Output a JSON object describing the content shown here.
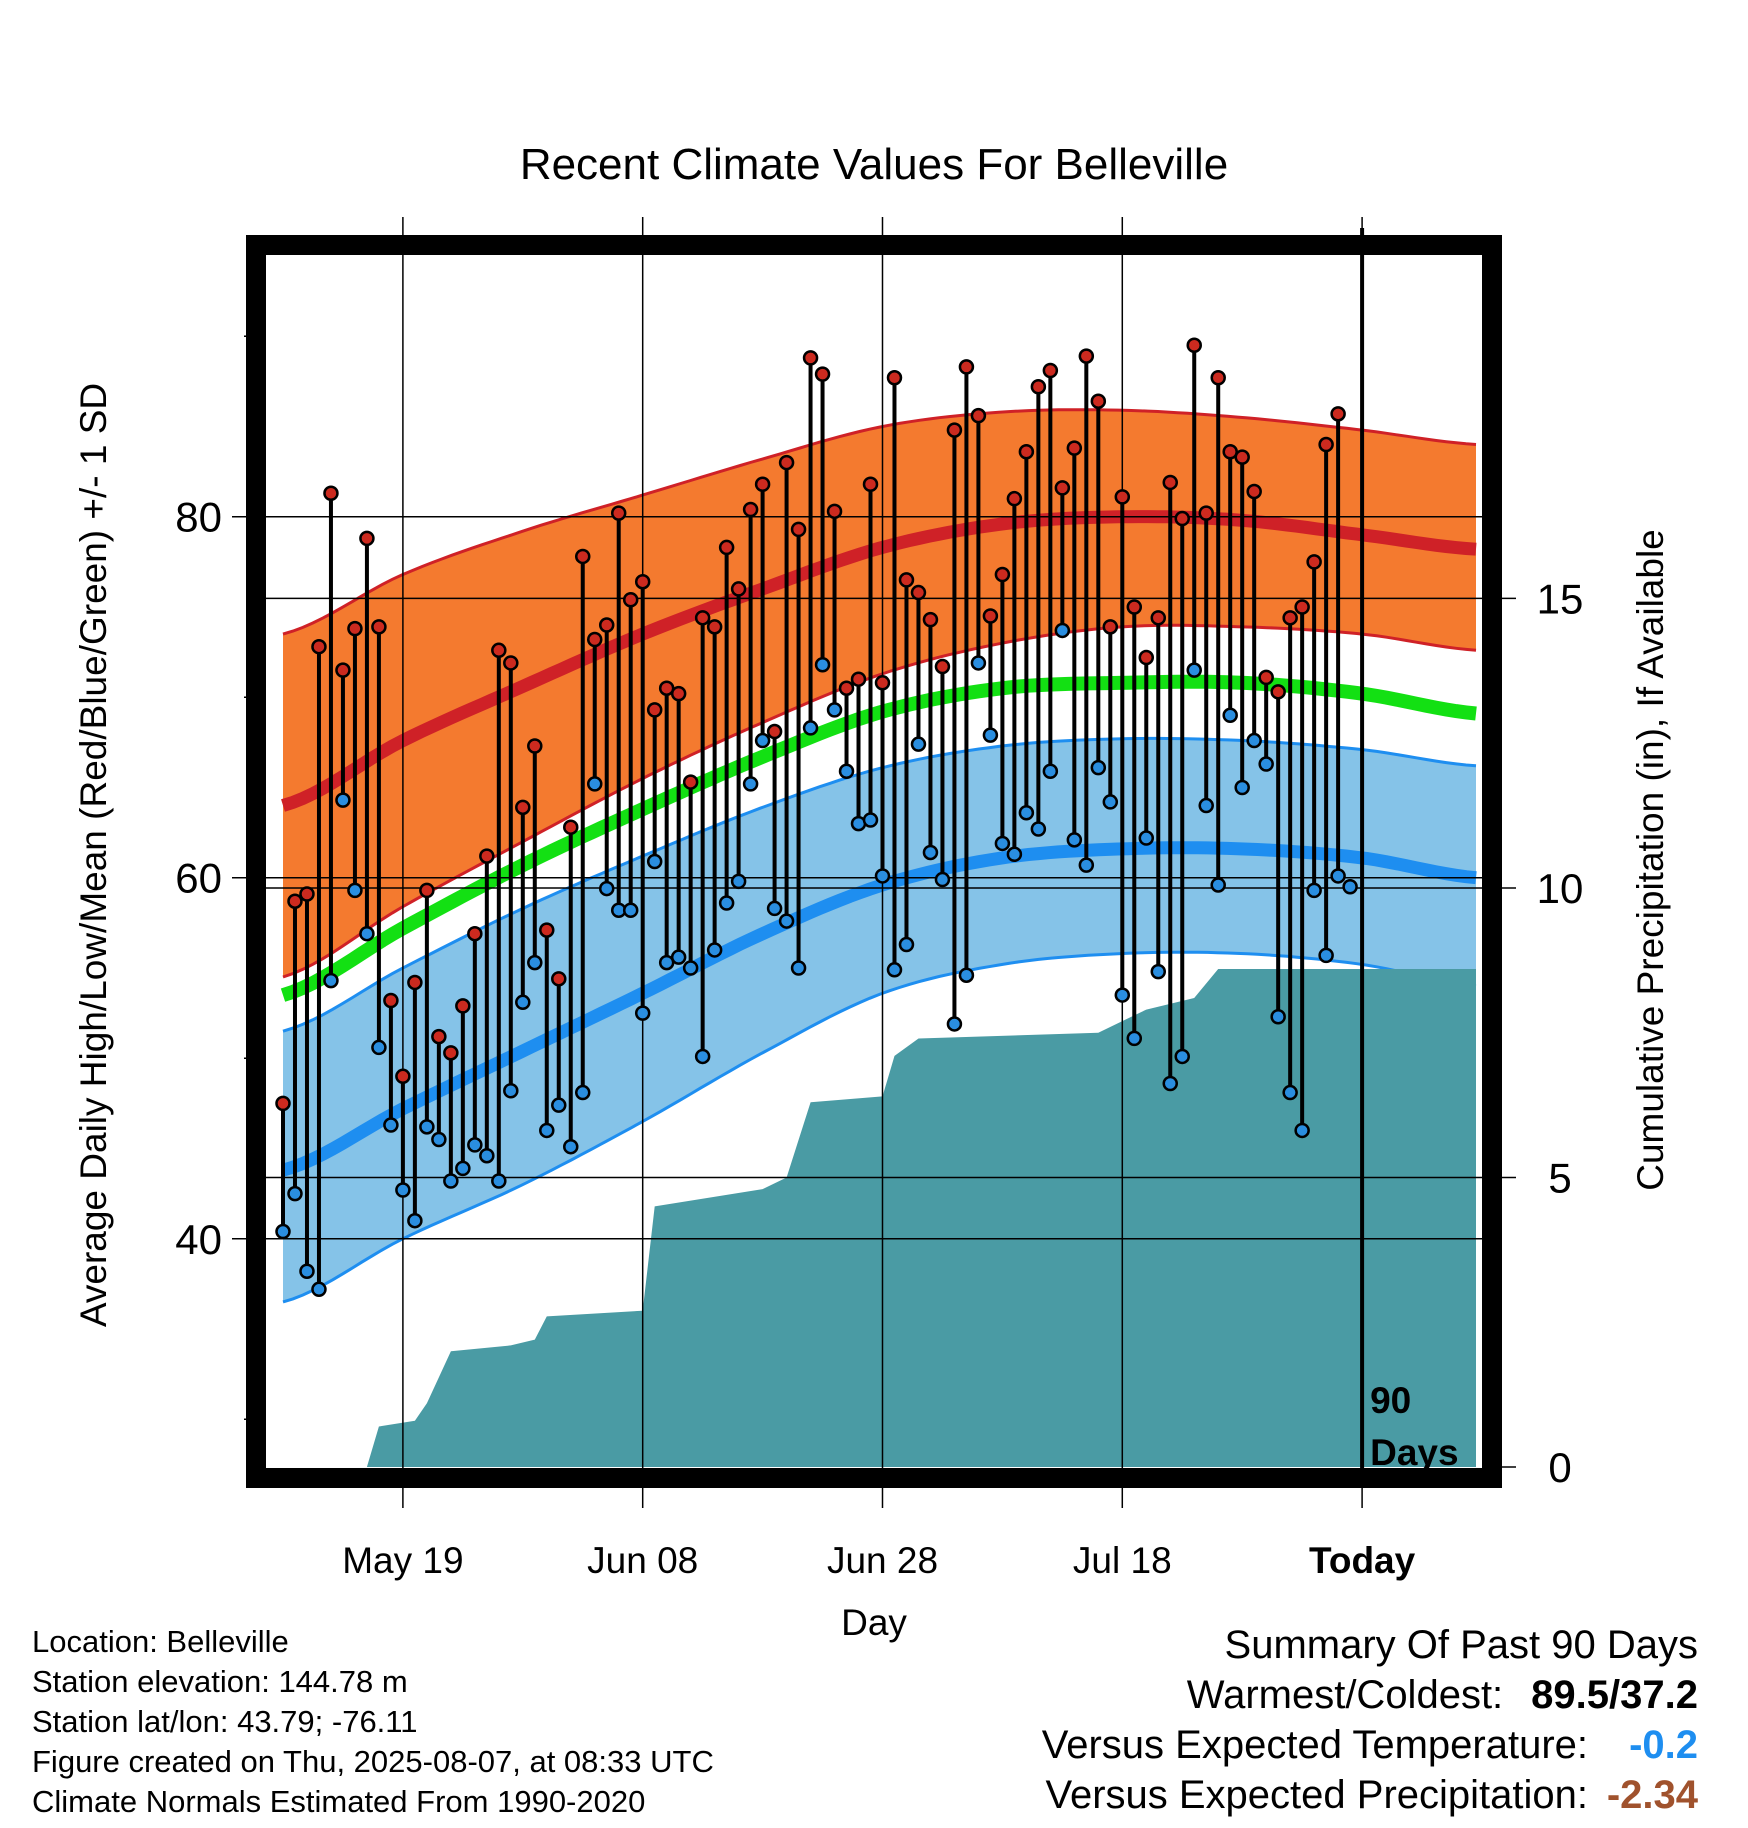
{
  "chart_data": {
    "type": "line",
    "title": "Recent Climate Values For Belleville",
    "xlabel": "Day",
    "ylabel": "Average Daily High/Low/Mean (Red/Blue/Green) +/- 1 SD",
    "y2label": "Cumulative Precipitation (in), If Available",
    "ylim": [
      27.3,
      94.5
    ],
    "y2lim": [
      0,
      21
    ],
    "yticks": [
      "40",
      "60",
      "80"
    ],
    "y2ticks": [
      "0",
      "5",
      "10",
      "15"
    ],
    "xticks": [
      "May 19",
      "Jun 08",
      "Jun 28",
      "Jul 18",
      "Today"
    ],
    "xtick_days": [
      10,
      30,
      50,
      70,
      90
    ],
    "xlim": [
      -0.5,
      99.5
    ],
    "grid": true,
    "marker_label": "90\nDays",
    "marker_day": 90,
    "colors": {
      "high_band": "#f47a2f",
      "high_line": "#cf2127",
      "low_band": "#85c3e8",
      "low_line": "#1e8ef0",
      "mean_line": "#13e013",
      "precip": "#4a9ba4",
      "high_dot": "#cc2a1f",
      "low_dot": "#2a8ee0"
    },
    "normals": {
      "x": [
        0,
        10,
        20,
        30,
        40,
        50,
        60,
        70,
        80,
        90,
        99.5
      ],
      "high_upper": [
        73.5,
        76.8,
        79.2,
        81.2,
        83.2,
        85,
        85.8,
        85.9,
        85.5,
        84.8,
        84
      ],
      "high_mean": [
        64,
        67.6,
        70.6,
        73.5,
        76,
        78.3,
        79.6,
        80,
        79.8,
        79,
        78.2
      ],
      "high_lower": [
        54.5,
        58.4,
        62,
        65.5,
        68.6,
        71.3,
        73,
        73.9,
        73.9,
        73.5,
        72.6
      ],
      "mean": [
        53.5,
        57.2,
        60.7,
        63.8,
        66.7,
        69.2,
        70.5,
        70.8,
        70.8,
        70.2,
        69.1
      ],
      "low_upper": [
        51.5,
        55,
        58.3,
        61.2,
        63.9,
        66.1,
        67.3,
        67.7,
        67.6,
        67.1,
        66.2
      ],
      "low_mean": [
        43.8,
        47.2,
        50.4,
        53.6,
        56.9,
        59.6,
        61.1,
        61.6,
        61.6,
        61.1,
        60
      ],
      "low_lower": [
        36.5,
        40,
        43,
        46.5,
        50.3,
        53.6,
        55.2,
        55.8,
        55.8,
        55.2,
        54
      ]
    },
    "days": [
      0,
      1,
      2,
      3,
      4,
      5,
      6,
      7,
      8,
      9,
      10,
      11,
      12,
      13,
      14,
      15,
      16,
      17,
      18,
      19,
      20,
      21,
      22,
      23,
      24,
      25,
      26,
      27,
      28,
      29,
      30,
      31,
      32,
      33,
      34,
      35,
      36,
      37,
      38,
      39,
      40,
      41,
      42,
      43,
      44,
      45,
      46,
      47,
      48,
      49,
      50,
      51,
      52,
      53,
      54,
      55,
      56,
      57,
      58,
      59,
      60,
      61,
      62,
      63,
      64,
      65,
      66,
      67,
      68,
      69,
      70,
      71,
      72,
      73,
      74,
      75,
      76,
      77,
      78,
      79,
      80,
      81,
      82,
      83,
      84,
      85,
      86,
      87,
      88,
      89
    ],
    "highs": [
      47.5,
      58.7,
      59.1,
      72.8,
      81.3,
      71.5,
      73.8,
      78.8,
      73.9,
      53.2,
      49,
      54.2,
      59.3,
      51.2,
      50.3,
      52.9,
      56.9,
      61.2,
      72.6,
      71.9,
      63.9,
      67.3,
      57.1,
      54.4,
      62.8,
      77.8,
      73.2,
      74,
      80.2,
      75.4,
      76.4,
      69.3,
      70.5,
      70.2,
      65.3,
      74.4,
      73.9,
      78.3,
      76,
      80.4,
      81.8,
      68.1,
      83,
      79.3,
      88.8,
      87.9,
      80.3,
      70.5,
      71,
      81.8,
      70.8,
      87.7,
      76.5,
      75.8,
      74.3,
      71.7,
      84.8,
      88.3,
      85.6,
      74.5,
      76.8,
      81,
      83.6,
      87.2,
      88.1,
      81.6,
      83.8,
      88.9,
      86.4,
      73.9,
      81.1,
      75,
      72.2,
      74.4,
      81.9,
      79.9,
      89.5,
      80.2,
      87.7,
      83.6,
      83.3,
      81.4,
      71.1,
      70.3,
      74.4,
      75,
      77.5,
      84,
      85.7,
      null
    ],
    "lows": [
      40.4,
      42.5,
      38.2,
      37.2,
      54.3,
      64.3,
      59.3,
      56.9,
      50.6,
      46.3,
      42.7,
      41,
      46.2,
      45.5,
      43.2,
      43.9,
      45.2,
      44.6,
      43.2,
      48.2,
      53.1,
      55.3,
      46,
      47.4,
      45.1,
      48.1,
      65.2,
      59.4,
      58.2,
      58.2,
      52.5,
      60.9,
      55.3,
      55.6,
      55,
      50.1,
      56,
      58.6,
      59.8,
      65.2,
      67.6,
      58.3,
      57.6,
      55,
      68.3,
      71.8,
      69.3,
      65.9,
      63,
      63.2,
      60.1,
      54.9,
      56.3,
      67.4,
      61.4,
      59.9,
      51.9,
      54.6,
      71.9,
      67.9,
      61.9,
      61.3,
      63.6,
      62.7,
      65.9,
      73.7,
      62.1,
      60.7,
      66.1,
      64.2,
      53.5,
      51.1,
      62.2,
      54.8,
      48.6,
      50.1,
      71.5,
      64,
      59.6,
      69,
      65,
      67.6,
      66.3,
      52.3,
      48.1,
      46,
      59.3,
      55.7,
      60.1,
      59.5
    ],
    "precip_steps": [
      [
        0,
        0
      ],
      [
        7,
        0
      ],
      [
        8,
        0.7
      ],
      [
        11,
        0.8
      ],
      [
        12,
        1.1
      ],
      [
        14,
        2
      ],
      [
        19,
        2.1
      ],
      [
        21,
        2.2
      ],
      [
        22,
        2.6
      ],
      [
        30,
        2.7
      ],
      [
        31,
        4.5
      ],
      [
        40,
        4.8
      ],
      [
        42,
        5
      ],
      [
        44,
        6.3
      ],
      [
        50,
        6.4
      ],
      [
        51,
        7.1
      ],
      [
        53,
        7.4
      ],
      [
        68,
        7.5
      ],
      [
        70,
        7.7
      ],
      [
        72,
        7.9
      ],
      [
        76,
        8.1
      ],
      [
        78,
        8.6
      ],
      [
        99.5,
        8.6
      ]
    ]
  },
  "info": {
    "location": "Location: Belleville",
    "elevation": "Station elevation: 144.78 m",
    "latlon": "Station lat/lon: 43.79; -76.11",
    "created": "Figure created on Thu, 2025-08-07, at 08:33 UTC",
    "normals": "Climate Normals Estimated From 1990-2020"
  },
  "summary": {
    "heading": "Summary Of Past 90 Days",
    "warmest_label": "Warmest/Coldest:",
    "warmest_value": "89.5/37.2",
    "temp_label": "Versus Expected Temperature:",
    "temp_value": "-0.2",
    "temp_color": "#1e8ef0",
    "precip_label": "Versus Expected Precipitation:",
    "precip_value": "-2.34",
    "precip_color": "#a0522d"
  }
}
